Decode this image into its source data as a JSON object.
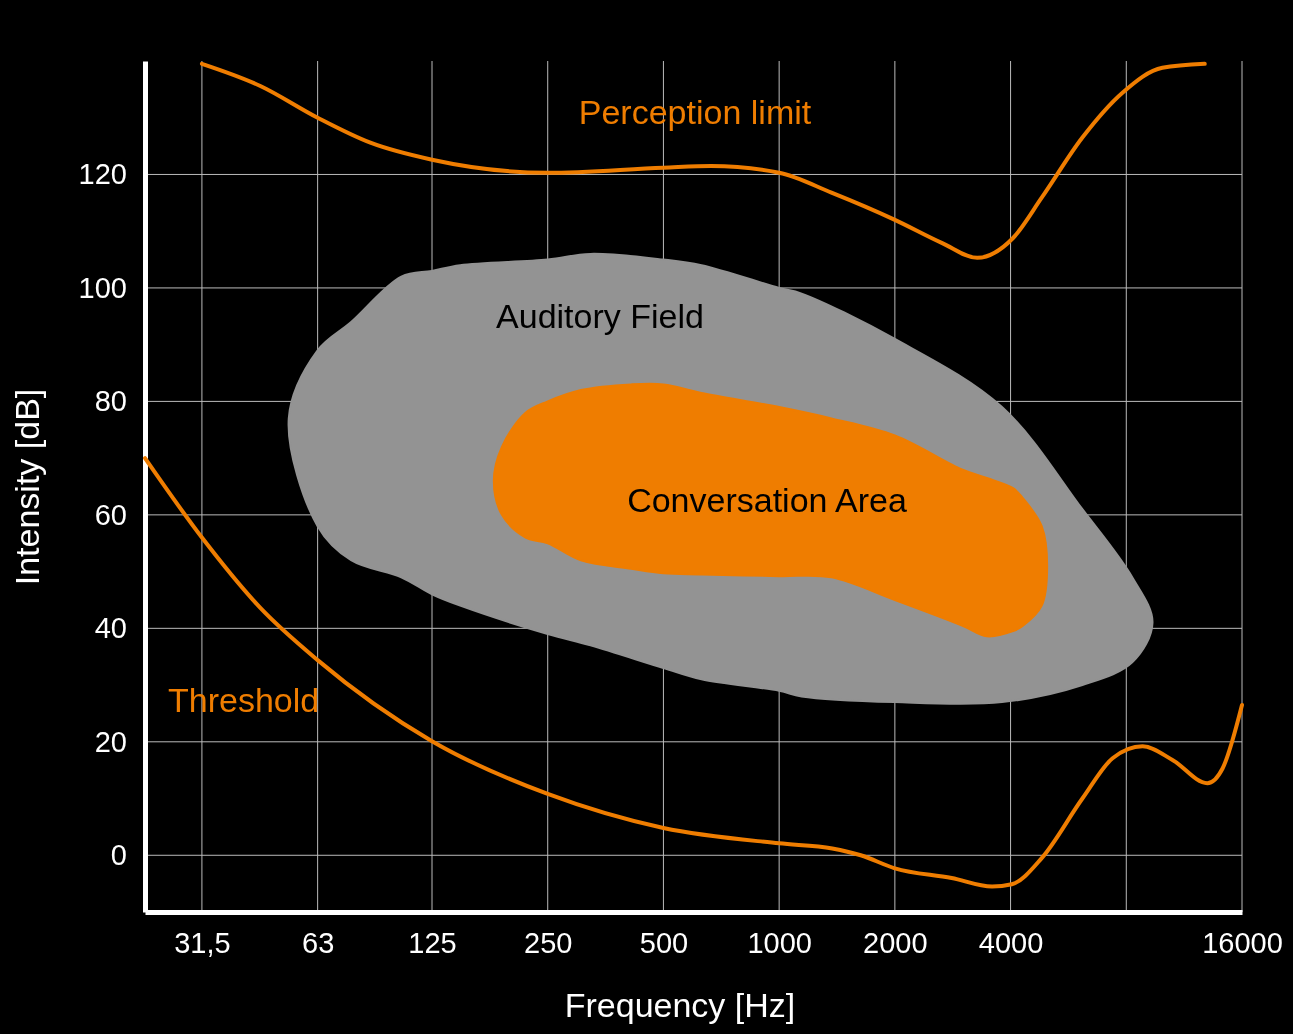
{
  "chart_data": {
    "type": "line",
    "xlabel": "Frequency [Hz]",
    "ylabel": "Intensity [dB]",
    "log": "x",
    "xlim": [
      22.4,
      16000
    ],
    "ylim": [
      -10,
      140
    ],
    "xticks": [
      {
        "value": 31.5,
        "label": "31,5"
      },
      63,
      125,
      250,
      500,
      1000,
      2000,
      4000,
      {
        "value": 8000,
        "label": null
      },
      16000
    ],
    "yticks": [
      0,
      20,
      40,
      60,
      80,
      100,
      120
    ],
    "grid": true,
    "marker": "none",
    "line_style": "solid",
    "series": [
      {
        "type": "area",
        "name": "Auditory Field",
        "color": "#939393",
        "x": [
          53,
          63,
          77,
          104,
          125,
          148,
          250,
          323,
          500,
          628,
          1000,
          1144,
          2000,
          3800,
          6150,
          8290,
          9360,
          8290,
          6150,
          3800,
          2000,
          1144,
          1000,
          628,
          500,
          323,
          250,
          148,
          125,
          104,
          77,
          63
        ],
        "values": [
          77,
          89,
          94,
          102,
          103,
          104,
          105,
          106,
          105,
          104,
          100,
          99,
          91,
          79,
          61,
          49,
          41,
          34,
          30,
          27,
          27,
          28,
          29,
          31,
          33,
          37,
          39,
          44,
          46,
          49,
          52,
          58
        ]
      },
      {
        "type": "area",
        "name": "Conversation Area",
        "color": "#ef7d00",
        "x": [
          181,
          190,
          219,
          250,
          305,
          412,
          500,
          628,
          1000,
          1368,
          2000,
          2990,
          3470,
          4060,
          4300,
          4820,
          4980,
          4820,
          4300,
          4060,
          3470,
          2990,
          2000,
          1368,
          1000,
          628,
          500,
          412,
          305,
          250,
          219,
          190
        ],
        "values": [
          66,
          72,
          78,
          80,
          82,
          83,
          83,
          81.5,
          79,
          77,
          74,
          68,
          66.5,
          64.7,
          63,
          58,
          51,
          44,
          40.4,
          39.5,
          38.6,
          40.5,
          45,
          49,
          49.2,
          49.5,
          49.7,
          50.5,
          52,
          55,
          56,
          60
        ]
      },
      {
        "name": "Threshold",
        "color": "#ef7d00",
        "x": [
          22.4,
          31.5,
          44.7,
          63,
          125,
          250,
          500,
          1000,
          1375,
          1630,
          2000,
          2810,
          3580,
          4030,
          4820,
          6150,
          7370,
          8820,
          10550,
          13000,
          14240,
          16000
        ],
        "values": [
          70,
          56,
          43.6,
          34.4,
          20.1,
          10.8,
          4.8,
          2.1,
          1.2,
          0,
          -2.3,
          -4,
          -5.5,
          -5.1,
          -0.5,
          10,
          17.1,
          19.2,
          16.8,
          12.7,
          15.3,
          26.5
        ]
      },
      {
        "name": "Perception limit",
        "color": "#ef7d00",
        "x": [
          31.5,
          44.7,
          63,
          86.4,
          125,
          250,
          500,
          665,
          1000,
          1368,
          2000,
          2656,
          3275,
          4060,
          4820,
          6150,
          7820,
          9930,
          12800
        ],
        "values": [
          139.5,
          135.6,
          130,
          125.6,
          122.6,
          120.3,
          121.2,
          121.5,
          120.3,
          116.8,
          112,
          107.9,
          105.3,
          108.8,
          115.9,
          126.5,
          134.4,
          138.8,
          139.5
        ]
      }
    ]
  }
}
